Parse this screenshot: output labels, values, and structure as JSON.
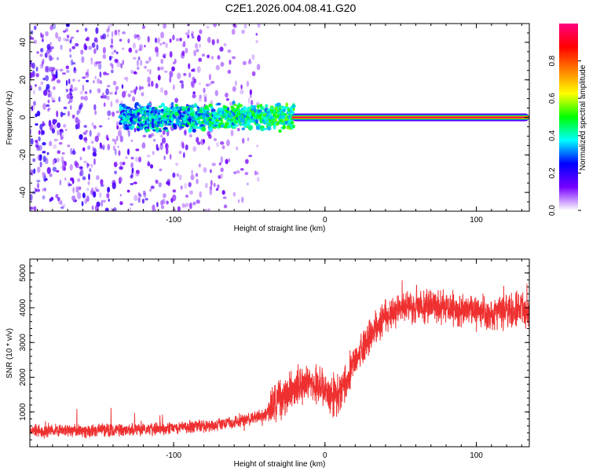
{
  "title": "C2E1.2026.004.08.41.G20",
  "chart_data": [
    {
      "type": "heatmap",
      "name": "spectrogram",
      "xlabel": "Height of straight line (km)",
      "ylabel": "Frequency (Hz)",
      "xlim": [
        -195,
        135
      ],
      "ylim": [
        -50,
        50
      ],
      "xticks": [
        -100,
        0,
        100
      ],
      "yticks": [
        -40,
        -20,
        0,
        20,
        40
      ],
      "colorbar": {
        "label": "Normalized spectral amplitude",
        "range": [
          0,
          1
        ],
        "ticks": [
          "0.0",
          "0.2",
          "0.4",
          "0.6",
          "0.8"
        ],
        "stops": [
          "#ffffff",
          "#7700ff",
          "#0000ff",
          "#00ffff",
          "#00ff00",
          "#ffff00",
          "#ff8000",
          "#ff0000",
          "#ff0080"
        ]
      },
      "features": {
        "noise_region_x": [
          -195,
          -45
        ],
        "scatter_band_x": [
          -135,
          -20
        ],
        "carrier_start_x": -22,
        "carrier_frequency": 0,
        "carrier_amplitude": 0.95
      }
    },
    {
      "type": "line",
      "name": "snr",
      "xlabel": "Height of straight line (km)",
      "ylabel": "SNR (10 * v/v)",
      "xlim": [
        -195,
        135
      ],
      "ylim": [
        0,
        5400
      ],
      "xticks": [
        -100,
        0,
        100
      ],
      "yticks": [
        1000,
        2000,
        3000,
        4000,
        5000
      ],
      "color": "#ef3030",
      "series": [
        {
          "name": "SNR",
          "x": [
            -195,
            -180,
            -160,
            -140,
            -120,
            -100,
            -80,
            -60,
            -40,
            -30,
            -20,
            -10,
            0,
            5,
            10,
            20,
            30,
            40,
            50,
            60,
            70,
            80,
            90,
            100,
            110,
            120,
            130,
            135
          ],
          "values": [
            450,
            450,
            450,
            480,
            500,
            550,
            600,
            700,
            900,
            1300,
            1700,
            1900,
            1600,
            1400,
            1500,
            2500,
            3200,
            3800,
            4000,
            4000,
            4100,
            4000,
            3900,
            3900,
            3800,
            3900,
            4000,
            3800
          ]
        }
      ]
    }
  ]
}
